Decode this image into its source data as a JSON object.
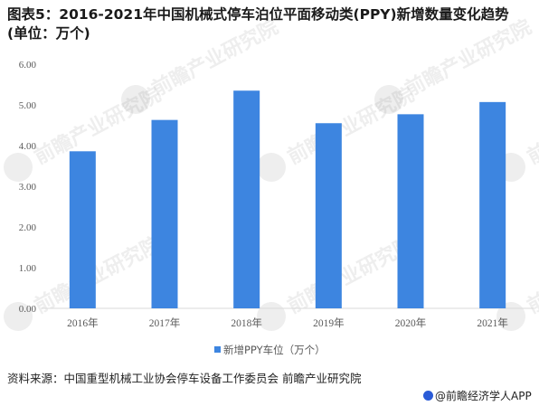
{
  "title_line1": "图表5：2016-2021年中国机械式停车泊位平面移动类(PPY)新增数量变化趋势",
  "title_line2": "(单位：万个)",
  "source": "资料来源：中国重型机械工业协会停车设备工作委员会 前瞻产业研究院",
  "credit": "@前瞻经济学人APP",
  "watermark": "前瞻产业研究院",
  "colors": {
    "bar": "#3d85e0",
    "axis": "#d9d9d9",
    "text": "#595959"
  },
  "chart_data": {
    "type": "bar",
    "categories": [
      "2016年",
      "2017年",
      "2018年",
      "2019年",
      "2020年",
      "2021年"
    ],
    "series": [
      {
        "name": "新增PPY车位（万个）",
        "values": [
          3.86,
          4.63,
          5.35,
          4.55,
          4.77,
          5.07
        ]
      }
    ],
    "y_ticks": [
      "0.00",
      "1.00",
      "2.00",
      "3.00",
      "4.00",
      "5.00",
      "6.00"
    ],
    "ylim": [
      0,
      6
    ],
    "grid": false,
    "legend_position": "bottom"
  }
}
